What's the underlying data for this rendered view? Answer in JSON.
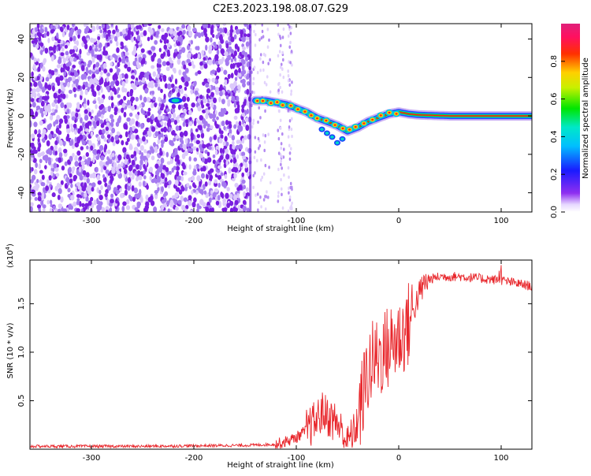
{
  "figure_title": "C2E3.2023.198.08.07.G29",
  "colors": {
    "snr_line": "#e8262b",
    "scatter": "#7a1fe0",
    "frame": "#000000"
  },
  "chart_data": [
    {
      "type": "heatmap",
      "title": "",
      "xlabel": "Height of straight line (km)",
      "ylabel": "Frequency (Hz)",
      "xlim": [
        -360,
        130
      ],
      "ylim": [
        -50,
        48
      ],
      "xticks": [
        -300,
        -200,
        -100,
        0,
        100
      ],
      "yticks": [
        -40,
        -20,
        0,
        20,
        40
      ],
      "colorbar": {
        "label": "Normalized spectral amplitude",
        "range": [
          0,
          1
        ],
        "ticks": [
          "0.0",
          "0.2",
          "0.4",
          "0.6",
          "0.8"
        ],
        "colormap": "rainbow (purple-blue-cyan-green-yellow-red-magenta)"
      },
      "noise_region_x": [
        -360,
        -145
      ],
      "signal_trace": {
        "x": [
          -140,
          -130,
          -120,
          -110,
          -100,
          -90,
          -80,
          -70,
          -60,
          -50,
          -40,
          -30,
          -20,
          -10,
          0,
          10,
          20,
          50,
          80,
          110,
          130
        ],
        "y": [
          8,
          8,
          7,
          6,
          4,
          2,
          -1,
          -3,
          -5,
          -8,
          -6,
          -3,
          -1,
          1,
          2,
          1,
          0.5,
          0,
          0,
          0,
          0
        ]
      },
      "side_lobes": {
        "x": [
          -75,
          -70,
          -65,
          -60,
          -55
        ],
        "y": [
          -7,
          -9,
          -11,
          -14,
          -12
        ]
      },
      "isolated_feature": {
        "x": -218,
        "y": 8
      }
    },
    {
      "type": "line",
      "title": "",
      "xlabel": "Height of straight line (km)",
      "ylabel": "SNR (10 * v/v)",
      "y_multiplier": "(x10",
      "y_multiplier_exp": "4",
      "y_multiplier_close": ")",
      "xlim": [
        -360,
        130
      ],
      "ylim": [
        0,
        1.95
      ],
      "xticks": [
        -300,
        -200,
        -100,
        0,
        100
      ],
      "yticks": [
        0.5,
        1.0,
        1.5
      ],
      "ytick_labels": [
        "0.5",
        "1.0",
        "1.5"
      ],
      "series": [
        {
          "x": [
            -360,
            -300,
            -250,
            -200,
            -150,
            -120,
            -110,
            -100,
            -90,
            -80,
            -75,
            -70,
            -65,
            -60,
            -55,
            -50,
            -45,
            -40,
            -35,
            -30,
            -25,
            -20,
            -15,
            -10,
            -5,
            0,
            5,
            10,
            15,
            20,
            25,
            30,
            40,
            60,
            80,
            100,
            110,
            120,
            130
          ],
          "y": [
            0.03,
            0.03,
            0.03,
            0.035,
            0.04,
            0.05,
            0.08,
            0.12,
            0.2,
            0.3,
            0.38,
            0.35,
            0.3,
            0.28,
            0.15,
            0.1,
            0.12,
            0.3,
            0.55,
            0.8,
            0.9,
            0.95,
            1.0,
            1.05,
            1.1,
            1.15,
            1.2,
            1.3,
            1.45,
            1.6,
            1.7,
            1.75,
            1.78,
            1.78,
            1.76,
            1.74,
            1.72,
            1.7,
            1.68
          ]
        }
      ]
    }
  ]
}
